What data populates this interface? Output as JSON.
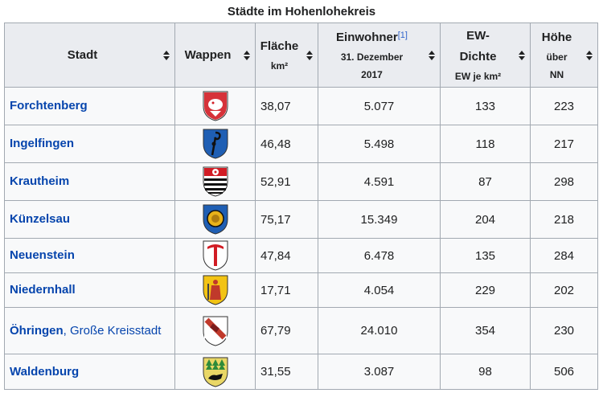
{
  "caption": "Städte im Hohenlohekreis",
  "headers": {
    "stadt": "Stadt",
    "wappen": "Wappen",
    "flaeche": "Fläche",
    "flaeche_unit": "km²",
    "einwohner": "Einwohner",
    "einwohner_ref": "[1]",
    "einwohner_date1": "31. Dezember",
    "einwohner_date2": "2017",
    "dichte1": "EW-",
    "dichte2": "Dichte",
    "dichte_unit": "EW je km²",
    "hoehe1": "Höhe",
    "hoehe2": "über",
    "hoehe3": "NN"
  },
  "rows": [
    {
      "stadt": "Forchtenberg",
      "suffix": "",
      "crest": "forchtenberg-coat-of-arms",
      "flaeche": "38,07",
      "einwohner": "5.077",
      "dichte": "133",
      "hoehe": "223"
    },
    {
      "stadt": "Ingelfingen",
      "suffix": "",
      "crest": "ingelfingen-coat-of-arms",
      "flaeche": "46,48",
      "einwohner": "5.498",
      "dichte": "118",
      "hoehe": "217"
    },
    {
      "stadt": "Krautheim",
      "suffix": "",
      "crest": "krautheim-coat-of-arms",
      "flaeche": "52,91",
      "einwohner": "4.591",
      "dichte": "87",
      "hoehe": "298"
    },
    {
      "stadt": "Künzelsau",
      "suffix": "",
      "crest": "kuenzelsau-coat-of-arms",
      "flaeche": "75,17",
      "einwohner": "15.349",
      "dichte": "204",
      "hoehe": "218"
    },
    {
      "stadt": "Neuenstein",
      "suffix": "",
      "crest": "neuenstein-coat-of-arms",
      "flaeche": "47,84",
      "einwohner": "6.478",
      "dichte": "135",
      "hoehe": "284"
    },
    {
      "stadt": "Niedernhall",
      "suffix": "",
      "crest": "niedernhall-coat-of-arms",
      "flaeche": "17,71",
      "einwohner": "4.054",
      "dichte": "229",
      "hoehe": "202"
    },
    {
      "stadt": "Öhringen",
      "suffix": ", Große Kreisstadt",
      "crest": "oehringen-coat-of-arms",
      "flaeche": "67,79",
      "einwohner": "24.010",
      "dichte": "354",
      "hoehe": "230"
    },
    {
      "stadt": "Waldenburg",
      "suffix": "",
      "crest": "waldenburg-coat-of-arms",
      "flaeche": "31,55",
      "einwohner": "3.087",
      "dichte": "98",
      "hoehe": "506"
    }
  ]
}
